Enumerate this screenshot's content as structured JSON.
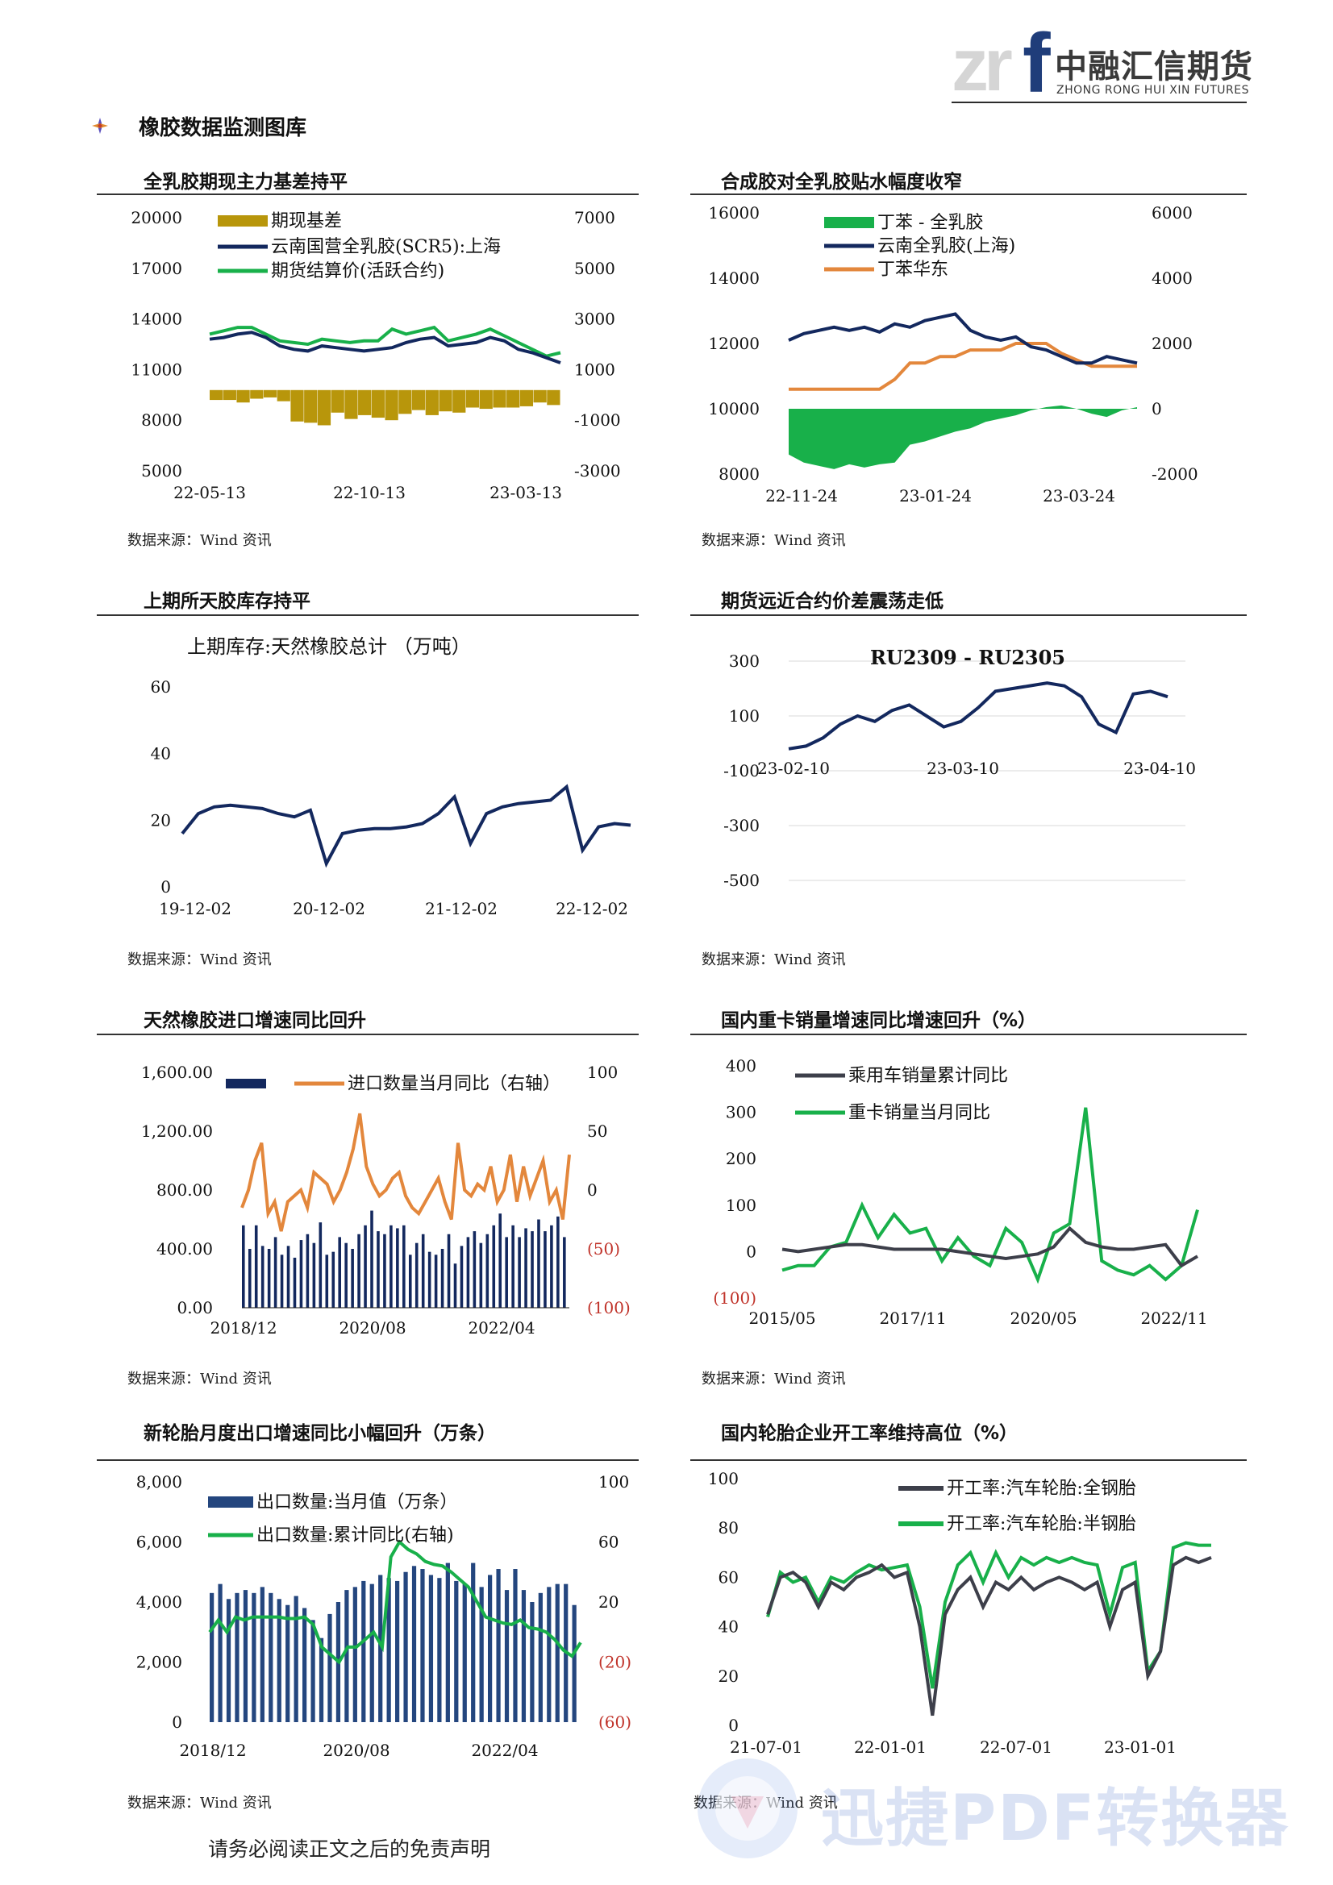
{
  "header": {
    "logo_mark": "zrf",
    "company_cn": "中融汇信期货",
    "company_en": "ZHONG RONG HUI XIN FUTURES"
  },
  "section": {
    "title": "橡胶数据监测图库",
    "icon": "diamond-star-icon"
  },
  "footer": {
    "disclaimer": "请务必阅读正文之后的免责声明"
  },
  "watermark": {
    "text": "迅捷PDF转换器"
  },
  "colors": {
    "gold": "#b8960b",
    "navy": "#13285e",
    "green": "#18b04a",
    "orange": "#e3873c",
    "red_label": "#c0332a",
    "gray": "#3d3f4a"
  },
  "panels": [
    {
      "title": "全乳胶期现主力基差持平",
      "source": "数据来源：Wind 资讯",
      "chart_data": {
        "type": "line+bar",
        "legend": [
          "期现基差",
          "云南国营全乳胶(SCR5):上海",
          "期货结算价(活跃合约)"
        ],
        "left_ticks": [
          "20000",
          "17000",
          "14000",
          "11000",
          "8000",
          "5000"
        ],
        "right_ticks": [
          "7000",
          "5000",
          "3000",
          "1000",
          "-1000",
          "-3000"
        ],
        "x_ticks": [
          "22-05-13",
          "22-10-13",
          "23-03-13"
        ],
        "ylim_left": [
          5000,
          20000
        ],
        "ylim_right": [
          -3000,
          7000
        ],
        "series": [
          {
            "name": "云南国营全乳胶(SCR5):上海",
            "axis": "left",
            "values": [
              12800,
              12900,
              13100,
              13200,
              12900,
              12400,
              12200,
              12100,
              12400,
              12300,
              12200,
              12100,
              12200,
              12300,
              12600,
              12800,
              12900,
              12400,
              12500,
              12600,
              12900,
              12700,
              12200,
              12000,
              11700,
              11400
            ]
          },
          {
            "name": "期货结算价(活跃合约)",
            "axis": "left",
            "values": [
              13100,
              13300,
              13500,
              13500,
              13100,
              12700,
              12600,
              12500,
              12800,
              12700,
              12600,
              12700,
              12700,
              13400,
              13100,
              13300,
              13500,
              12700,
              12900,
              13100,
              13400,
              13000,
              12600,
              12200,
              11800,
              12000
            ]
          },
          {
            "name": "期现基差",
            "axis": "right",
            "values": [
              -200,
              -200,
              -300,
              -150,
              -100,
              -250,
              -1050,
              -1100,
              -1200,
              -700,
              -950,
              -800,
              -900,
              -1000,
              -750,
              -600,
              -800,
              -650,
              -700,
              -500,
              -550,
              -500,
              -500,
              -450,
              -300,
              -400
            ]
          }
        ]
      }
    },
    {
      "title": "合成胶对全乳胶贴水幅度收窄",
      "source": "数据来源：Wind 资讯",
      "chart_data": {
        "type": "line+area",
        "legend": [
          "丁苯 - 全乳胶",
          "云南全乳胶(上海)",
          "丁苯华东"
        ],
        "left_ticks": [
          "16000",
          "14000",
          "12000",
          "10000",
          "8000"
        ],
        "right_ticks": [
          "6000",
          "4000",
          "2000",
          "0",
          "-2000"
        ],
        "x_ticks": [
          "22-11-24",
          "23-01-24",
          "23-03-24"
        ],
        "ylim_left": [
          8000,
          16000
        ],
        "ylim_right": [
          -2000,
          6000
        ],
        "series": [
          {
            "name": "云南全乳胶(上海)",
            "axis": "left",
            "values": [
              12100,
              12300,
              12400,
              12500,
              12400,
              12500,
              12350,
              12600,
              12500,
              12700,
              12800,
              12900,
              12400,
              12200,
              12100,
              12200,
              11900,
              11800,
              11600,
              11400,
              11400,
              11600,
              11500,
              11400
            ]
          },
          {
            "name": "丁苯华东",
            "axis": "left",
            "values": [
              10600,
              10600,
              10600,
              10600,
              10600,
              10600,
              10600,
              10900,
              11400,
              11400,
              11600,
              11600,
              11800,
              11800,
              11800,
              12000,
              12000,
              12000,
              11700,
              11500,
              11300,
              11300,
              11300,
              11300
            ]
          },
          {
            "name": "丁苯 - 全乳胶",
            "axis": "right",
            "values": [
              -1400,
              -1650,
              -1750,
              -1850,
              -1700,
              -1800,
              -1700,
              -1650,
              -1100,
              -1000,
              -850,
              -700,
              -600,
              -400,
              -300,
              -200,
              -50,
              50,
              100,
              0,
              -150,
              -250,
              -50,
              50
            ]
          }
        ]
      }
    },
    {
      "title": "上期所天胶库存持平",
      "source": "数据来源：Wind 资讯",
      "chart_data": {
        "type": "line",
        "inner_title": "上期库存:天然橡胶总计 （万吨）",
        "y_ticks": [
          "60",
          "40",
          "20",
          "0"
        ],
        "x_ticks": [
          "19-12-02",
          "20-12-02",
          "21-12-02",
          "22-12-02"
        ],
        "ylim": [
          0,
          60
        ],
        "series": [
          {
            "name": "上期库存:天然橡胶总计",
            "values": [
              16,
              22,
              24,
              24.5,
              24,
              23.5,
              22,
              21,
              23,
              7,
              16,
              17,
              17.5,
              17.5,
              18,
              19,
              22,
              27,
              13,
              22,
              24,
              25,
              25.5,
              26,
              30,
              11,
              18,
              19,
              18.5
            ]
          }
        ]
      }
    },
    {
      "title": "期货远近合约价差震荡走低",
      "source": "数据来源：Wind 资讯",
      "chart_data": {
        "type": "line",
        "inner_title": "RU2309 - RU2305",
        "y_ticks": [
          "300",
          "100",
          "-100",
          "-300",
          "-500"
        ],
        "x_ticks": [
          "23-02-10",
          "23-03-10",
          "23-04-10"
        ],
        "ylim": [
          -500,
          300
        ],
        "series": [
          {
            "name": "RU2309 - RU2305",
            "values": [
              -20,
              -10,
              20,
              70,
              100,
              80,
              120,
              140,
              100,
              60,
              80,
              130,
              190,
              200,
              210,
              220,
              210,
              170,
              70,
              40,
              180,
              190,
              170
            ]
          }
        ]
      }
    },
    {
      "title": "天然橡胶进口增速同比回升",
      "source": "数据来源：Wind 资讯",
      "chart_data": {
        "type": "bar+line",
        "legend": [
          "",
          "进口数量当月同比（右轴）"
        ],
        "left_ticks": [
          "1,600.00",
          "1,200.00",
          "800.00",
          "400.00",
          "0.00"
        ],
        "right_ticks": [
          "100",
          "50",
          "0",
          "(50)",
          "(100)"
        ],
        "x_ticks": [
          "2018/12",
          "2020/08",
          "2022/04"
        ],
        "ylim_left": [
          0,
          1600
        ],
        "ylim_right": [
          -100,
          100
        ],
        "bars": [
          560,
          400,
          560,
          420,
          400,
          480,
          360,
          420,
          340,
          460,
          500,
          440,
          580,
          360,
          380,
          480,
          440,
          400,
          500,
          560,
          660,
          520,
          500,
          560,
          540,
          560,
          360,
          440,
          500,
          380,
          360,
          400,
          500,
          300,
          420,
          480,
          520,
          440,
          500,
          560,
          640,
          480,
          560,
          480,
          540,
          520,
          600,
          520,
          560,
          620,
          480
        ],
        "line": [
          -15,
          0,
          25,
          40,
          -20,
          -10,
          -35,
          -10,
          -5,
          0,
          -15,
          15,
          10,
          5,
          -10,
          0,
          15,
          35,
          65,
          20,
          5,
          -5,
          0,
          10,
          15,
          -5,
          -15,
          -20,
          -10,
          0,
          10,
          -10,
          -25,
          40,
          0,
          -5,
          5,
          0,
          20,
          -10,
          0,
          30,
          -10,
          20,
          -5,
          10,
          25,
          -10,
          0,
          -25,
          30
        ]
      }
    },
    {
      "title": "国内重卡销量增速同比增速回升（%）",
      "source": "数据来源：Wind 资讯",
      "chart_data": {
        "type": "line",
        "legend": [
          "乘用车销量累计同比",
          "重卡销量当月同比"
        ],
        "y_ticks": [
          "400",
          "300",
          "200",
          "100",
          "0",
          "(100)"
        ],
        "x_ticks": [
          "2015/05",
          "2017/11",
          "2020/05",
          "2022/11"
        ],
        "ylim": [
          -100,
          400
        ],
        "series": [
          {
            "name": "乘用车销量累计同比",
            "values": [
              5,
              0,
              5,
              10,
              15,
              15,
              10,
              5,
              5,
              5,
              5,
              0,
              -5,
              -10,
              -15,
              -10,
              -5,
              10,
              50,
              20,
              10,
              5,
              5,
              10,
              15,
              -30,
              -10
            ]
          },
          {
            "name": "重卡销量当月同比",
            "values": [
              -40,
              -30,
              -30,
              10,
              20,
              100,
              30,
              80,
              40,
              50,
              -20,
              30,
              -10,
              -30,
              50,
              20,
              -60,
              40,
              60,
              310,
              -20,
              -40,
              -50,
              -30,
              -60,
              -30,
              90
            ]
          }
        ]
      }
    },
    {
      "title": "新轮胎月度出口增速同比小幅回升（万条）",
      "source": "数据来源：Wind 资讯",
      "chart_data": {
        "type": "bar+line",
        "legend": [
          "出口数量:当月值（万条）",
          "出口数量:累计同比(右轴)"
        ],
        "left_ticks": [
          "8,000",
          "6,000",
          "4,000",
          "2,000",
          "0"
        ],
        "right_ticks": [
          "100",
          "60",
          "20",
          "(20)",
          "(60)"
        ],
        "x_ticks": [
          "2018/12",
          "2020/08",
          "2022/04"
        ],
        "ylim_left": [
          0,
          8000
        ],
        "ylim_right": [
          -60,
          100
        ],
        "bars": [
          4300,
          4600,
          4100,
          4300,
          4400,
          4300,
          4500,
          4300,
          4100,
          3900,
          4200,
          3800,
          3400,
          2800,
          3600,
          4000,
          4400,
          4500,
          4700,
          4600,
          4900,
          4800,
          4700,
          5000,
          5200,
          5100,
          4900,
          4800,
          5300,
          4700,
          4600,
          5300,
          4500,
          4900,
          5100,
          4400,
          5100,
          4400,
          4000,
          4300,
          4500,
          4600,
          4600,
          3900
        ],
        "line": [
          0,
          8,
          0,
          10,
          8,
          10,
          10,
          10,
          10,
          9,
          9,
          10,
          5,
          -10,
          -15,
          -20,
          -10,
          -10,
          -5,
          0,
          -10,
          50,
          60,
          55,
          52,
          47,
          45,
          44,
          40,
          35,
          30,
          20,
          10,
          8,
          6,
          5,
          8,
          3,
          2,
          0,
          -5,
          -12,
          -16,
          -7
        ]
      }
    },
    {
      "title": "国内轮胎企业开工率维持高位（%）",
      "source": "数据来源：Wind 资讯",
      "chart_data": {
        "type": "line",
        "legend": [
          "开工率:汽车轮胎:全钢胎",
          "开工率:汽车轮胎:半钢胎"
        ],
        "y_ticks": [
          "100",
          "80",
          "60",
          "40",
          "20",
          "0"
        ],
        "x_ticks": [
          "21-07-01",
          "22-01-01",
          "22-07-01",
          "23-01-01"
        ],
        "ylim": [
          0,
          100
        ],
        "series": [
          {
            "name": "开工率:汽车轮胎:全钢胎",
            "values": [
              45,
              60,
              62,
              58,
              48,
              58,
              55,
              60,
              62,
              65,
              60,
              62,
              40,
              4,
              45,
              55,
              60,
              48,
              58,
              55,
              60,
              55,
              58,
              60,
              58,
              55,
              58,
              40,
              55,
              58,
              20,
              30,
              65,
              68,
              66,
              68
            ]
          },
          {
            "name": "开工率:汽车轮胎:半钢胎",
            "values": [
              44,
              62,
              58,
              60,
              50,
              60,
              58,
              62,
              65,
              63,
              64,
              65,
              48,
              15,
              50,
              65,
              70,
              58,
              70,
              60,
              68,
              65,
              68,
              66,
              68,
              66,
              65,
              45,
              64,
              66,
              22,
              30,
              72,
              74,
              73,
              73
            ]
          }
        ]
      }
    }
  ]
}
